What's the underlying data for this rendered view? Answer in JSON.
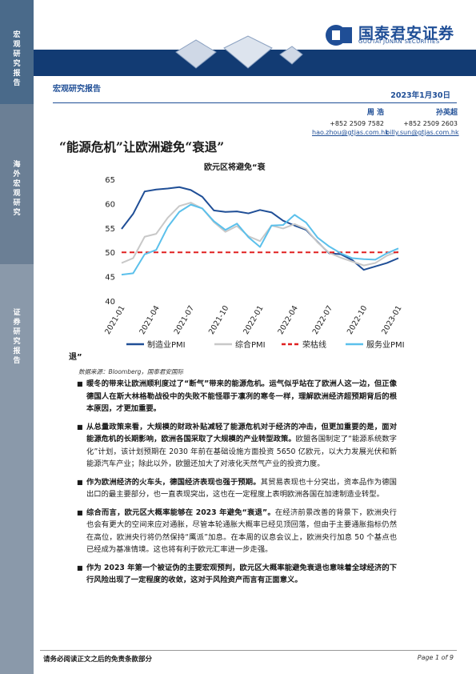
{
  "sidebar": {
    "section1": "宏观研究报告",
    "section2": "海外宏观研究",
    "section3": "证券研究报告"
  },
  "brand": {
    "name_cn": "国泰君安证券",
    "name_en": "GUOTAI JUNAN SECURITIES",
    "color": "#1f4e96"
  },
  "header": {
    "report_type": "宏观研究报告",
    "date": "2023年1月30日"
  },
  "authors": [
    {
      "name": "周 浩",
      "phone": "+852 2509 7582",
      "email": "hao.zhou@gtjas.com.hk"
    },
    {
      "name": "孙英超",
      "phone": "+852 2509 2603",
      "email": "billy.sun@gtjas.com.hk"
    }
  ],
  "title": "“能源危机”让欧洲避免“衰退”",
  "chart_data": {
    "type": "line",
    "title": "欧元区将避免“衰",
    "title_tail": "退”",
    "ylim": [
      40,
      65
    ],
    "yticks": [
      40,
      45,
      50,
      55,
      60,
      65
    ],
    "xticks": [
      "2021-01",
      "2021-04",
      "2021-07",
      "2021-10",
      "2022-01",
      "2022-04",
      "2022-07",
      "2022-10",
      "2023-01"
    ],
    "x": [
      "2021-01",
      "2021-02",
      "2021-03",
      "2021-04",
      "2021-05",
      "2021-06",
      "2021-07",
      "2021-08",
      "2021-09",
      "2021-10",
      "2021-11",
      "2021-12",
      "2022-01",
      "2022-02",
      "2022-03",
      "2022-04",
      "2022-05",
      "2022-06",
      "2022-07",
      "2022-08",
      "2022-09",
      "2022-10",
      "2022-11",
      "2022-12",
      "2023-01"
    ],
    "series": [
      {
        "name": "制造业PMI",
        "color": "#1f4e96",
        "dash": "",
        "values": [
          54.8,
          57.9,
          62.5,
          62.9,
          63.1,
          63.4,
          62.8,
          61.4,
          58.6,
          58.3,
          58.4,
          58.0,
          58.7,
          58.2,
          56.5,
          55.5,
          54.6,
          52.1,
          49.8,
          49.6,
          48.4,
          46.4,
          47.1,
          47.8,
          48.8
        ]
      },
      {
        "name": "综合PMI",
        "color": "#c8c8c8",
        "dash": "",
        "values": [
          47.8,
          48.8,
          53.2,
          53.8,
          57.1,
          59.5,
          60.2,
          59.0,
          56.2,
          54.2,
          55.4,
          53.3,
          52.3,
          55.5,
          54.9,
          55.8,
          54.8,
          52.0,
          49.9,
          48.9,
          48.1,
          47.3,
          47.8,
          49.3,
          50.2
        ]
      },
      {
        "name": "荣枯线",
        "color": "#e02020",
        "dash": "6,4",
        "values": [
          50,
          50,
          50,
          50,
          50,
          50,
          50,
          50,
          50,
          50,
          50,
          50,
          50,
          50,
          50,
          50,
          50,
          50,
          50,
          50,
          50,
          50,
          50,
          50,
          50
        ]
      },
      {
        "name": "服务业PMI",
        "color": "#5bc0eb",
        "dash": "",
        "values": [
          45.4,
          45.7,
          49.6,
          50.5,
          55.2,
          58.3,
          59.8,
          59.0,
          56.4,
          54.6,
          55.9,
          53.1,
          51.1,
          55.5,
          55.6,
          57.7,
          56.1,
          53.0,
          51.2,
          49.8,
          48.8,
          48.6,
          48.5,
          49.8,
          50.8
        ]
      }
    ]
  },
  "source": "数据来源：Bloomberg，国泰君安国际",
  "bullets": [
    {
      "bold": "暖冬的带来让欧洲顺利度过了“断气”带来的能源危机。运气似乎站在了欧洲人这一边，但正像德国人在斯大林格勒战役中的失败不能怪罪于凛冽的寒冬一样，理解欧洲经济超预期背后的根本原因，才更加重要。",
      "text": ""
    },
    {
      "bold": "从总量政策来看，大规模的财政补贴减轻了能源危机对于经济的冲击，但更加重要的是，面对能源危机的长期影响，欧洲各国采取了大规模的产业转型政策。",
      "text": "欧盟各国制定了“能源系统数字化”计划，该计划预期在 2030 年前在基础设施方面投资 5650 亿欧元，以大力发展光伏和新能源汽车产业；除此以外，欧盟还加大了对液化天然气产业的投资力度。"
    },
    {
      "bold": "作为欧洲经济的火车头，德国经济表现也强于预期。",
      "text": "其贸易表现也十分突出，资本品作为德国出口的最主要部分，也一直表现突出，这也在一定程度上表明欧洲各国在加速制造业转型。"
    },
    {
      "bold": "综合而言，欧元区大概率能够在 2023 年避免“衰退”。",
      "text": "在经济前景改善的背景下，欧洲央行也会有更大的空间来应对通胀，尽管本轮通胀大概率已经见顶回落，但由于主要通胀指标仍然在高位，欧洲央行将仍然保持“鹰派”加息。在本周的议息会议上，欧洲央行加息 50 个基点也已经成为基准情境。这也将有利于欧元汇率进一步走强。"
    },
    {
      "bold": "作为 2023 年第一个被证伪的主要宏观预判，欧元区大概率能避免衰退也意味着全球经济的下行风险出现了一定程度的收敛，这对于风险资产而言有正面意义。",
      "text": ""
    }
  ],
  "footer": {
    "disclaimer": "请务必阅读正文之后的免责条款部分",
    "page": "Page 1 of 9"
  }
}
